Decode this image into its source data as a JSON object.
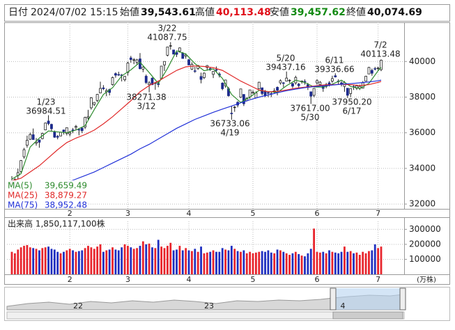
{
  "header": {
    "items": [
      {
        "label": "日付",
        "value": "2024/07/02 15:15"
      },
      {
        "label": "始値",
        "value": "39,543.61"
      },
      {
        "label": "高値",
        "value": "40,113.48"
      },
      {
        "label": "安値",
        "value": "39,457.62"
      },
      {
        "label": "終値",
        "value": "40,074.69"
      }
    ]
  },
  "navigator": {
    "labels": [
      "22",
      "23",
      "4"
    ]
  },
  "chart_data": [
    {
      "type": "candlestick",
      "categories": [
        null,
        null,
        null,
        null,
        null,
        null,
        null,
        null,
        null,
        null,
        null,
        null,
        null,
        null,
        null,
        null,
        null,
        null,
        null,
        "2",
        null,
        null,
        null,
        null,
        null,
        null,
        null,
        null,
        null,
        null,
        null,
        null,
        null,
        null,
        null,
        null,
        null,
        null,
        "3",
        null,
        null,
        null,
        null,
        null,
        null,
        null,
        null,
        null,
        null,
        null,
        null,
        null,
        null,
        null,
        null,
        null,
        null,
        null,
        "4",
        null,
        null,
        null,
        null,
        null,
        null,
        null,
        null,
        null,
        null,
        null,
        null,
        null,
        null,
        null,
        null,
        null,
        null,
        null,
        null,
        "5",
        null,
        null,
        null,
        null,
        null,
        null,
        null,
        null,
        null,
        null,
        null,
        null,
        null,
        null,
        null,
        null,
        null,
        null,
        null,
        null,
        "6",
        null,
        null,
        null,
        null,
        null,
        null,
        null,
        null,
        null,
        null,
        null,
        null,
        null,
        null,
        null,
        null,
        null,
        null,
        null,
        "7",
        null
      ],
      "open": [
        33193,
        33330,
        33598,
        33822,
        34655,
        35300,
        35634,
        35890,
        35420,
        35602,
        35668,
        36161,
        36658,
        36471,
        36030,
        35801,
        35820,
        36156,
        35962,
        35930,
        36162,
        36306,
        36185,
        36258,
        36317,
        36835,
        37400,
        37588,
        37811,
        38235,
        38519,
        38298,
        38424,
        38700,
        39320,
        39269,
        39241,
        38974,
        39385,
        40201,
        40081,
        39953,
        40146,
        39570,
        39173,
        38700,
        39065,
        38768,
        38760,
        39036,
        39808,
        40351,
        40877,
        40647,
        40512,
        40586,
        40470,
        40301,
        40100,
        39570,
        39475,
        39604,
        39158,
        39095,
        39666,
        39600,
        39278,
        39538,
        39301,
        38787,
        38638,
        38470,
        37100,
        37409,
        37709,
        37996,
        38151,
        37800,
        38010,
        38225,
        37966,
        38470,
        38524,
        38300,
        38250,
        38200,
        38300,
        38550,
        38800,
        38800,
        38900,
        38942,
        38760,
        38800,
        38730,
        38866,
        38880,
        38700,
        38300,
        38100,
        38800,
        38700,
        38600,
        38600,
        38800,
        38900,
        39200,
        38900,
        38800,
        38600,
        38500,
        38200,
        38600,
        38500,
        38500,
        38500,
        38900,
        39300,
        39500,
        39600,
        39600,
        39543.61
      ],
      "high": [
        33568,
        33456,
        33990,
        34470,
        35152,
        35839,
        36008,
        36239,
        35706,
        35612,
        36000,
        36568,
        36984.51,
        36512,
        36125,
        35874,
        36060,
        36181,
        36296,
        36114,
        36270,
        36441,
        36255,
        36321,
        36897,
        37287,
        38000,
        37720,
        38180,
        38865,
        38674,
        38480,
        38474,
        39156,
        39388,
        39426,
        39301,
        39192,
        39990,
        40314,
        40190,
        40147,
        40472,
        39727,
        39269,
        38900,
        39105,
        38823,
        38925,
        39740,
        40003,
        40823,
        41087.75,
        40649,
        40530,
        40790,
        40531,
        40462,
        40146,
        39958,
        39700,
        39799,
        39375,
        39389,
        39800,
        39684,
        39444,
        39721,
        39395,
        38832,
        38979,
        38576,
        37500,
        37507,
        37772,
        38460,
        38163,
        38000,
        38405,
        38390,
        38323,
        38863,
        38526,
        38400,
        38300,
        38300,
        38500,
        38600,
        39000,
        38850,
        39437.16,
        39000,
        38800,
        39200,
        38800,
        38934,
        38998,
        38800,
        38300,
        38500,
        39000,
        38900,
        38700,
        38800,
        38900,
        39200,
        39336.66,
        39000,
        38900,
        38900,
        38500,
        38500,
        38700,
        38700,
        38700,
        38900,
        39200,
        39700,
        39600,
        39700,
        39700,
        40113.48
      ],
      "low": [
        32693,
        32949,
        33401,
        33747,
        34546,
        35166,
        35600,
        35617,
        35278,
        35159,
        35635,
        36139,
        36421,
        36095,
        35714,
        35631,
        35800,
        35900,
        35852,
        35800,
        35979,
        36151,
        35854,
        35983,
        36209,
        36733,
        37300,
        37500,
        37721,
        38222,
        38394,
        38052,
        38095,
        38648,
        39089,
        39187,
        38881,
        38876,
        39203,
        39929,
        39850,
        39825,
        39555,
        39400,
        38734,
        38271.38,
        38680,
        38415,
        38555,
        38972,
        39466,
        40285,
        40664,
        40390,
        40250,
        40494,
        40168,
        40155,
        39788,
        39525,
        39360,
        39529,
        38774,
        39014,
        39500,
        39469,
        39069,
        39382,
        39101,
        38386,
        38527,
        38026,
        36733.06,
        37175,
        37425,
        37950,
        37500,
        37760,
        37900,
        38186,
        37966,
        38450,
        38098,
        38000,
        38000,
        38000,
        38200,
        38100,
        38700,
        38550,
        38900,
        38800,
        38500,
        38700,
        38500,
        38760,
        38700,
        38400,
        37617,
        38000,
        38700,
        38700,
        38300,
        38500,
        38600,
        38800,
        39100,
        38700,
        38600,
        38300,
        37950.2,
        38000,
        38400,
        38400,
        38400,
        38500,
        38900,
        39300,
        39200,
        39500,
        39500,
        39457.62
      ],
      "close": [
        33288,
        33377,
        33763,
        34441,
        35049,
        35577,
        35901,
        35619,
        35477,
        35466,
        35963,
        36546,
        36517,
        36226,
        35750,
        35751,
        36026,
        36065,
        36286,
        36011,
        36158,
        36354,
        36160,
        36119,
        36863,
        36897,
        37963,
        37703,
        38157,
        38487,
        38470,
        38363,
        38262,
        39098,
        39233,
        39239,
        39208,
        39166,
        39910,
        40109,
        40097,
        40090,
        39598,
        39688,
        38820,
        38797,
        38695,
        38807,
        38707,
        39740,
        40003,
        40815,
        40888,
        40414,
        40398,
        40762,
        40168,
        40369,
        39803,
        39838,
        39451,
        39773,
        38992,
        39347,
        39773,
        39581,
        39442,
        39523,
        39232,
        38471,
        38961,
        38079,
        37068,
        37438,
        37552,
        38460,
        37628,
        37934,
        38405,
        38274,
        38236,
        38835,
        38202,
        38073,
        38229,
        38179,
        38356,
        38385,
        38920,
        38787,
        39069,
        38946,
        38617,
        39103,
        38646,
        38900,
        38855,
        38556,
        38054,
        38487,
        38923,
        38837,
        38490,
        38703,
        38683,
        39038,
        39134,
        38876,
        38720,
        38814,
        38102,
        38482,
        38570,
        38633,
        38596,
        38804,
        39173,
        39667,
        39341,
        39583,
        39631,
        40074.69
      ],
      "up_color": "#ffffff",
      "down_color": "#1c2a8c",
      "ylim": [
        31730,
        42200
      ],
      "yticks": [
        32000,
        34000,
        36000,
        38000,
        40000
      ],
      "grid": true,
      "series": [
        {
          "name": "MA(5)",
          "color": "#2e8b2e",
          "value_label": "39,659.49",
          "x": [
            0,
            3,
            6,
            9,
            12,
            15,
            18,
            21,
            24,
            27,
            30,
            33,
            36,
            39,
            42,
            45,
            48,
            51,
            54,
            57,
            60,
            63,
            66,
            69,
            72,
            75,
            78,
            81,
            84,
            87,
            90,
            93,
            96,
            99,
            102,
            105,
            108,
            111,
            114,
            117,
            120,
            121
          ],
          "values": [
            33400,
            33700,
            35200,
            35700,
            36100,
            36050,
            36000,
            36150,
            36400,
            37300,
            38150,
            38530,
            39190,
            39530,
            39960,
            39380,
            38765,
            39610,
            40600,
            40420,
            39880,
            39480,
            39580,
            39050,
            38150,
            37700,
            38000,
            38380,
            38310,
            38260,
            38640,
            38950,
            38820,
            38570,
            38560,
            38730,
            38950,
            38600,
            38480,
            38770,
            39480,
            39659.49
          ]
        },
        {
          "name": "MA(25)",
          "color": "#e02828",
          "value_label": "38,879.27",
          "x": [
            0,
            3,
            6,
            9,
            12,
            15,
            18,
            21,
            24,
            27,
            30,
            33,
            36,
            39,
            42,
            45,
            48,
            51,
            54,
            57,
            60,
            63,
            66,
            69,
            72,
            75,
            78,
            81,
            84,
            87,
            90,
            93,
            96,
            99,
            102,
            105,
            108,
            111,
            114,
            117,
            120,
            121
          ],
          "values": [
            33300,
            33450,
            33800,
            34150,
            34600,
            35050,
            35450,
            35700,
            35900,
            36150,
            36500,
            36900,
            37350,
            37800,
            38300,
            38650,
            38900,
            39200,
            39500,
            39700,
            39750,
            39720,
            39650,
            39500,
            39200,
            38900,
            38650,
            38400,
            38300,
            38320,
            38400,
            38500,
            38560,
            38620,
            38680,
            38700,
            38720,
            38700,
            38650,
            38700,
            38830,
            38879.27
          ]
        },
        {
          "name": "MA(75)",
          "color": "#2030d8",
          "value_label": "38,952.48",
          "x": [
            18,
            21,
            24,
            27,
            30,
            33,
            36,
            39,
            42,
            45,
            48,
            51,
            54,
            57,
            60,
            63,
            66,
            69,
            72,
            75,
            78,
            81,
            84,
            87,
            90,
            93,
            96,
            99,
            102,
            105,
            108,
            111,
            114,
            117,
            120,
            121
          ],
          "values": [
            33200,
            33400,
            33600,
            33800,
            34050,
            34300,
            34550,
            34800,
            35100,
            35350,
            35650,
            35950,
            36250,
            36500,
            36750,
            36950,
            37150,
            37330,
            37500,
            37680,
            37850,
            38000,
            38120,
            38250,
            38360,
            38450,
            38530,
            38590,
            38630,
            38680,
            38720,
            38760,
            38800,
            38850,
            38920,
            38952.48
          ]
        }
      ],
      "annotations": [
        {
          "date": "1/23",
          "value": 36984.51
        },
        {
          "date": "3/22",
          "value": 41087.75
        },
        {
          "date": "3/12",
          "value": 38271.38
        },
        {
          "date": "4/19",
          "value": 36733.06
        },
        {
          "date": "5/20",
          "value": 39437.16
        },
        {
          "date": "6/11",
          "value": 39336.66
        },
        {
          "date": "5/30",
          "value": 37617,
          "value_label": "37617.00"
        },
        {
          "date": "6/17",
          "value": 37950.2,
          "value_label": "37950.20"
        },
        {
          "date": "7/2",
          "value": 40113.48
        }
      ]
    },
    {
      "type": "bar",
      "title": "出来高 1,850,117,100株",
      "unit_label": "(万株)",
      "categories": [
        null,
        null,
        null,
        null,
        null,
        null,
        null,
        null,
        null,
        null,
        null,
        null,
        null,
        null,
        null,
        null,
        null,
        null,
        null,
        "2",
        null,
        null,
        null,
        null,
        null,
        null,
        null,
        null,
        null,
        null,
        null,
        null,
        null,
        null,
        null,
        null,
        null,
        null,
        "3",
        null,
        null,
        null,
        null,
        null,
        null,
        null,
        null,
        null,
        null,
        null,
        null,
        null,
        null,
        null,
        null,
        null,
        null,
        null,
        "4",
        null,
        null,
        null,
        null,
        null,
        null,
        null,
        null,
        null,
        null,
        null,
        null,
        null,
        null,
        null,
        null,
        null,
        null,
        null,
        null,
        "5",
        null,
        null,
        null,
        null,
        null,
        null,
        null,
        null,
        null,
        null,
        null,
        null,
        null,
        null,
        null,
        null,
        null,
        null,
        null,
        null,
        "6",
        null,
        null,
        null,
        null,
        null,
        null,
        null,
        null,
        null,
        null,
        null,
        null,
        null,
        null,
        null,
        null,
        null,
        null,
        null,
        "7",
        null
      ],
      "values": [
        150000,
        140000,
        165000,
        180000,
        190000,
        195000,
        180000,
        175000,
        170000,
        160000,
        175000,
        180000,
        185000,
        170000,
        165000,
        150000,
        140000,
        150000,
        160000,
        170000,
        160000,
        150000,
        155000,
        160000,
        175000,
        190000,
        180000,
        170000,
        185000,
        200000,
        150000,
        160000,
        165000,
        180000,
        165000,
        160000,
        180000,
        200000,
        190000,
        180000,
        170000,
        175000,
        190000,
        220000,
        200000,
        205000,
        180000,
        175000,
        230000,
        185000,
        175000,
        190000,
        210000,
        160000,
        165000,
        190000,
        160000,
        175000,
        160000,
        155000,
        170000,
        150000,
        185000,
        140000,
        145000,
        150000,
        160000,
        150000,
        150000,
        175000,
        165000,
        160000,
        190000,
        170000,
        155000,
        150000,
        160000,
        140000,
        150000,
        140000,
        145000,
        150000,
        155000,
        150000,
        160000,
        145000,
        140000,
        165000,
        160000,
        150000,
        140000,
        130000,
        140000,
        150000,
        135000,
        125000,
        120000,
        140000,
        170000,
        305000,
        150000,
        145000,
        150000,
        140000,
        160000,
        150000,
        145000,
        140000,
        150000,
        185000,
        150000,
        155000,
        140000,
        145000,
        130000,
        150000,
        140000,
        155000,
        160000,
        200000,
        175000,
        185011.71
      ],
      "up_color": "#e8242c",
      "down_color": "#1f2fc0",
      "ylim": [
        0,
        353000
      ],
      "yticks": [
        100000,
        200000,
        300000
      ],
      "grid": true
    }
  ]
}
